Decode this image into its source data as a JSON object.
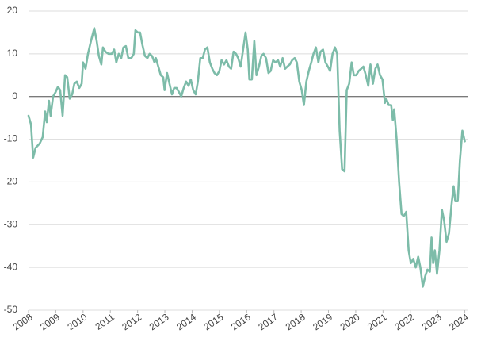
{
  "chart_data": {
    "type": "line",
    "color": "#7dbca9",
    "grid": true,
    "zero_line": true,
    "xlim": [
      2008,
      2024.1
    ],
    "xticks": [
      2008,
      2009,
      2010,
      2011,
      2012,
      2013,
      2014,
      2015,
      2016,
      2017,
      2018,
      2019,
      2020,
      2021,
      2022,
      2023,
      2024
    ],
    "ylim": [
      -50,
      20
    ],
    "yticks": [
      20,
      10,
      0,
      -10,
      -20,
      -30,
      -40,
      -50
    ],
    "x": [
      2008.0,
      2008.09,
      2008.17,
      2008.26,
      2008.41,
      2008.52,
      2008.61,
      2008.67,
      2008.75,
      2008.81,
      2008.9,
      2008.99,
      2009.08,
      2009.16,
      2009.25,
      2009.34,
      2009.42,
      2009.51,
      2009.6,
      2009.68,
      2009.77,
      2009.86,
      2009.95,
      2010.0,
      2010.09,
      2010.18,
      2010.29,
      2010.41,
      2010.5,
      2010.58,
      2010.67,
      2010.73,
      2010.82,
      2010.93,
      2011.05,
      2011.14,
      2011.22,
      2011.31,
      2011.4,
      2011.48,
      2011.57,
      2011.66,
      2011.77,
      2011.86,
      2011.92,
      2012.01,
      2012.09,
      2012.18,
      2012.27,
      2012.36,
      2012.44,
      2012.53,
      2012.62,
      2012.67,
      2012.76,
      2012.85,
      2012.94,
      2012.99,
      2013.08,
      2013.17,
      2013.26,
      2013.34,
      2013.43,
      2013.52,
      2013.6,
      2013.69,
      2013.78,
      2013.87,
      2013.95,
      2014.04,
      2014.13,
      2014.21,
      2014.3,
      2014.39,
      2014.47,
      2014.56,
      2014.65,
      2014.74,
      2014.82,
      2014.91,
      2015.0,
      2015.08,
      2015.17,
      2015.26,
      2015.35,
      2015.43,
      2015.52,
      2015.61,
      2015.69,
      2015.78,
      2015.87,
      2015.96,
      2016.04,
      2016.1,
      2016.19,
      2016.28,
      2016.36,
      2016.45,
      2016.54,
      2016.62,
      2016.71,
      2016.8,
      2016.88,
      2016.97,
      2017.06,
      2017.15,
      2017.23,
      2017.32,
      2017.41,
      2017.49,
      2017.58,
      2017.67,
      2017.76,
      2017.84,
      2017.93,
      2018.02,
      2018.1,
      2018.19,
      2018.28,
      2018.37,
      2018.45,
      2018.54,
      2018.63,
      2018.71,
      2018.8,
      2018.89,
      2018.98,
      2019.06,
      2019.15,
      2019.24,
      2019.32,
      2019.41,
      2019.5,
      2019.59,
      2019.67,
      2019.76,
      2019.85,
      2019.93,
      2020.02,
      2020.11,
      2020.2,
      2020.28,
      2020.37,
      2020.46,
      2020.54,
      2020.63,
      2020.72,
      2020.8,
      2020.89,
      2020.98,
      2021.07,
      2021.12,
      2021.21,
      2021.3,
      2021.36,
      2021.41,
      2021.5,
      2021.59,
      2021.68,
      2021.76,
      2021.85,
      2021.94,
      2022.02,
      2022.11,
      2022.2,
      2022.29,
      2022.37,
      2022.46,
      2022.55,
      2022.63,
      2022.72,
      2022.78,
      2022.84,
      2022.9,
      2022.98,
      2023.07,
      2023.16,
      2023.24,
      2023.33,
      2023.42,
      2023.51,
      2023.59,
      2023.65,
      2023.74,
      2023.82,
      2023.91,
      2024.0
    ],
    "values": [
      -4.5,
      -6.5,
      -14.3,
      -12,
      -11,
      -9.5,
      -3.5,
      -6,
      -1,
      -4.5,
      0,
      1,
      2.3,
      1.5,
      -4.5,
      5,
      4.5,
      -0.5,
      0.5,
      3,
      3.5,
      2,
      3,
      8,
      6.5,
      10,
      13,
      16,
      13,
      9.5,
      7.5,
      11.5,
      10.5,
      10,
      10,
      11,
      8,
      10,
      9,
      11.5,
      11.8,
      9,
      9,
      10,
      15.5,
      15,
      15,
      12,
      9.5,
      9,
      10,
      9.5,
      8,
      9,
      7,
      5,
      4.5,
      1.5,
      5.5,
      3,
      0.5,
      2,
      2,
      1,
      0,
      2,
      3.5,
      2.5,
      4,
      1.5,
      0.5,
      3.5,
      9,
      9,
      11,
      11.5,
      8,
      6.5,
      5.5,
      5,
      6,
      8.5,
      7.5,
      8.5,
      7,
      6.5,
      10.5,
      10,
      9,
      7,
      11,
      15,
      11,
      4,
      4,
      13,
      5,
      7,
      9.5,
      10,
      9,
      5.5,
      6,
      8.5,
      8,
      8.5,
      7,
      9,
      6.5,
      7,
      7.5,
      8.5,
      9,
      8,
      3.5,
      1.5,
      -2,
      3.5,
      6,
      8,
      10,
      11.5,
      8,
      10.5,
      11,
      8,
      7,
      6,
      10,
      11.5,
      10,
      -8,
      -17,
      -17.5,
      1.5,
      3,
      8,
      5,
      5,
      6,
      6.5,
      7,
      5,
      2.5,
      7.5,
      3,
      6.5,
      7.5,
      5,
      4,
      -1.5,
      -0.5,
      -2,
      -2,
      -5.5,
      -3,
      -10,
      -20,
      -27.5,
      -28,
      -27,
      -36,
      -39,
      -38,
      -40,
      -37.5,
      -40,
      -44.5,
      -42,
      -40.5,
      -41,
      -33,
      -39,
      -36,
      -41.5,
      -36,
      -26.5,
      -29,
      -34,
      -32,
      -25.5,
      -21,
      -24.5,
      -24.5,
      -15,
      -8,
      -10.5
    ]
  }
}
